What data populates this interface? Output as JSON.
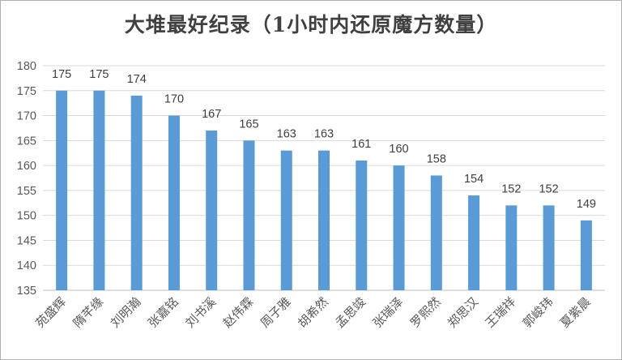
{
  "chart_data": {
    "type": "bar",
    "title": "大堆最好纪录（1小时内还原魔方数量）",
    "categories": [
      "苑盛辉",
      "隋芊缘",
      "刘明瀚",
      "张嘉铭",
      "刘书溪",
      "赵伟霖",
      "周子雅",
      "胡希然",
      "孟思竣",
      "张瑞泽",
      "罗熙然",
      "郑思汉",
      "王瑞祥",
      "郭峻玮",
      "夏紫晨"
    ],
    "values": [
      175,
      175,
      174,
      170,
      167,
      165,
      163,
      163,
      161,
      160,
      158,
      154,
      152,
      152,
      149
    ],
    "yticks": [
      "135",
      "140",
      "145",
      "150",
      "155",
      "160",
      "165",
      "170",
      "175",
      "180"
    ],
    "ylim": [
      135,
      180
    ],
    "grid": true,
    "bar_color": "#5b9bd5",
    "xlabel": "",
    "ylabel": ""
  }
}
